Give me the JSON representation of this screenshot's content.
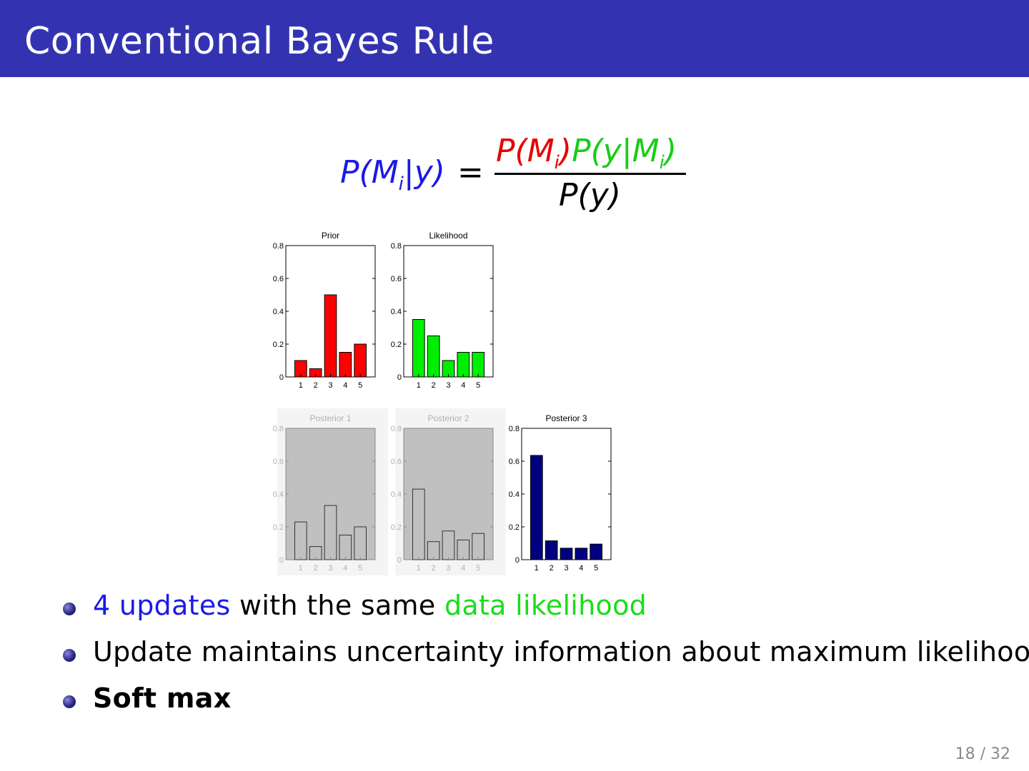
{
  "slide": {
    "title": "Conventional Bayes Rule",
    "page": "18 / 32"
  },
  "formula": {
    "lhs": "P(M|y)",
    "eq": "=",
    "prior": "P(M)",
    "likelihood": "P(y|M)",
    "denominator": "P(y)",
    "subscript": "i"
  },
  "bullets": [
    {
      "parts": [
        "4 updates",
        " with the same ",
        "data likelihood"
      ]
    },
    {
      "text": "Update maintains uncertainty information about maximum likelihood"
    },
    {
      "text": "Soft max"
    }
  ],
  "colors": {
    "prior": "#ff0000",
    "likelihood": "#00ee00",
    "posterior_faded": "#c0c0c0",
    "posterior_final": "#000080",
    "header": "#3333b2"
  },
  "chart_data": [
    {
      "type": "bar",
      "title": "Prior",
      "categories": [
        "1",
        "2",
        "3",
        "4",
        "5"
      ],
      "values": [
        0.1,
        0.05,
        0.5,
        0.15,
        0.2
      ],
      "ylim": [
        0,
        0.8
      ],
      "yticks": [
        "0",
        "0.2",
        "0.4",
        "0.6",
        "0.8"
      ],
      "color": "#ff0000",
      "style": "normal"
    },
    {
      "type": "bar",
      "title": "Likelihood",
      "categories": [
        "1",
        "2",
        "3",
        "4",
        "5"
      ],
      "values": [
        0.35,
        0.25,
        0.1,
        0.15,
        0.15
      ],
      "ylim": [
        0,
        0.8
      ],
      "yticks": [
        "0",
        "0.2",
        "0.4",
        "0.6",
        "0.8"
      ],
      "color": "#00ee00",
      "style": "normal"
    },
    {
      "type": "bar",
      "title": "Posterior 1",
      "categories": [
        "1",
        "2",
        "3",
        "4",
        "5"
      ],
      "values": [
        0.23,
        0.08,
        0.33,
        0.15,
        0.2
      ],
      "ylim": [
        0,
        0.8
      ],
      "yticks": [
        "0",
        "0.2",
        "0.4",
        "0.6",
        "0.8"
      ],
      "color": "#c0c0c0",
      "style": "faded"
    },
    {
      "type": "bar",
      "title": "Posterior 2",
      "categories": [
        "1",
        "2",
        "3",
        "4",
        "5"
      ],
      "values": [
        0.43,
        0.11,
        0.175,
        0.12,
        0.16
      ],
      "ylim": [
        0,
        0.8
      ],
      "yticks": [
        "0",
        "0.2",
        "0.4",
        "0.6",
        "0.8"
      ],
      "color": "#c0c0c0",
      "style": "faded"
    },
    {
      "type": "bar",
      "title": "Posterior 3",
      "categories": [
        "1",
        "2",
        "3",
        "4",
        "5"
      ],
      "values": [
        0.635,
        0.115,
        0.07,
        0.07,
        0.095
      ],
      "ylim": [
        0,
        0.8
      ],
      "yticks": [
        "0",
        "0.2",
        "0.4",
        "0.6",
        "0.8"
      ],
      "color": "#000080",
      "style": "normal"
    }
  ]
}
